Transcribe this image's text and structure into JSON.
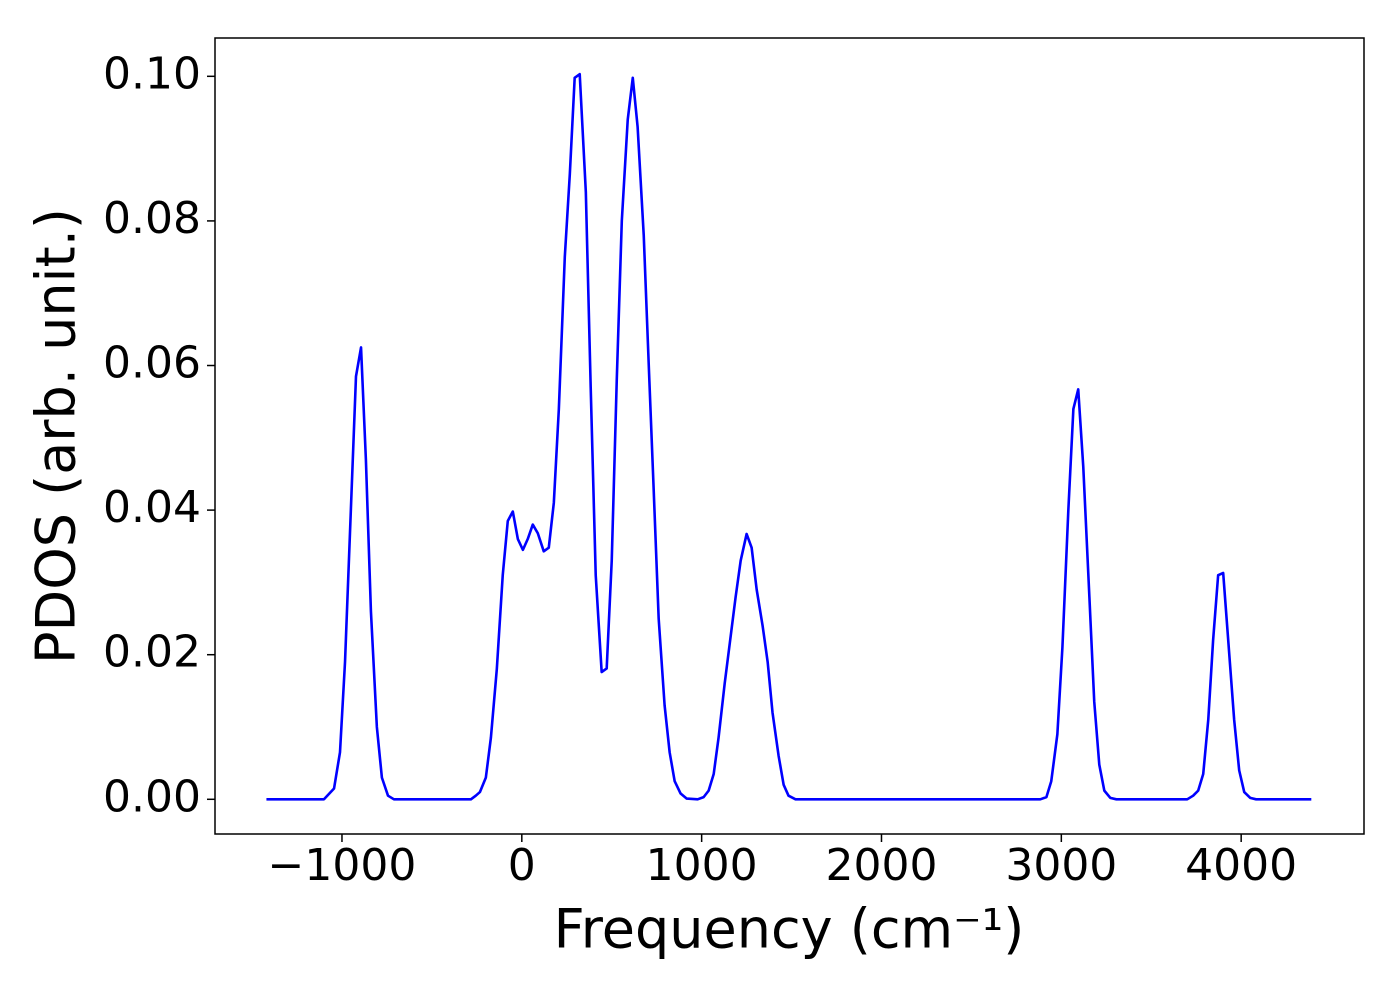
{
  "chart_data": {
    "type": "line",
    "xlabel": "Frequency (cm⁻¹)",
    "ylabel": "PDOS (arb. unit.)",
    "color": "#0000ff",
    "grid": false,
    "xlim": [
      -1706,
      4683
    ],
    "ylim": [
      -0.0048,
      0.1053
    ],
    "xticks": [
      {
        "value": -1000,
        "label": "−1000"
      },
      0,
      1000,
      2000,
      3000,
      4000
    ],
    "yticks": [
      {
        "value": 0,
        "label": "0.00"
      },
      {
        "value": 0.02,
        "label": "0.02"
      },
      {
        "value": 0.04,
        "label": "0.04"
      },
      {
        "value": 0.06,
        "label": "0.06"
      },
      {
        "value": 0.08,
        "label": "0.08"
      },
      {
        "value": 0.1,
        "label": "0.10"
      }
    ],
    "x": [
      -1420,
      -1100,
      -1044,
      -1011,
      -983,
      -922,
      -894,
      -867,
      -839,
      -806,
      -778,
      -744,
      -711,
      -283,
      -256,
      -233,
      -200,
      -172,
      -139,
      -106,
      -78,
      -50,
      -22,
      6,
      33,
      61,
      89,
      122,
      150,
      178,
      206,
      239,
      267,
      294,
      322,
      356,
      383,
      411,
      444,
      472,
      500,
      528,
      556,
      589,
      617,
      644,
      678,
      706,
      733,
      761,
      794,
      822,
      850,
      883,
      917,
      978,
      1011,
      1039,
      1067,
      1094,
      1128,
      1156,
      1189,
      1217,
      1250,
      1278,
      1306,
      1339,
      1367,
      1394,
      1428,
      1456,
      1483,
      1522,
      2883,
      2917,
      2944,
      2978,
      3006,
      3039,
      3067,
      3094,
      3122,
      3156,
      3183,
      3211,
      3239,
      3272,
      3306,
      3700,
      3733,
      3761,
      3789,
      3817,
      3844,
      3872,
      3900,
      3928,
      3961,
      3989,
      4017,
      4050,
      4083,
      4390
    ],
    "values": [
      0,
      0,
      0.0015,
      0.0065,
      0.019,
      0.0585,
      0.0625,
      0.047,
      0.026,
      0.01,
      0.003,
      0.0005,
      0,
      0,
      0.0005,
      0.001,
      0.003,
      0.0085,
      0.018,
      0.031,
      0.0385,
      0.0398,
      0.036,
      0.0345,
      0.036,
      0.038,
      0.0368,
      0.0343,
      0.0348,
      0.041,
      0.054,
      0.075,
      0.0865,
      0.0998,
      0.1003,
      0.084,
      0.057,
      0.031,
      0.0176,
      0.0181,
      0.033,
      0.058,
      0.08,
      0.094,
      0.0998,
      0.093,
      0.078,
      0.06,
      0.043,
      0.025,
      0.013,
      0.0065,
      0.0025,
      0.0008,
      0.0001,
      0,
      0.0003,
      0.0012,
      0.0035,
      0.0085,
      0.016,
      0.0215,
      0.028,
      0.033,
      0.0367,
      0.0348,
      0.029,
      0.024,
      0.019,
      0.012,
      0.006,
      0.002,
      0.0005,
      0,
      0,
      0.0003,
      0.0025,
      0.009,
      0.021,
      0.04,
      0.054,
      0.0567,
      0.046,
      0.028,
      0.0135,
      0.0048,
      0.0012,
      0.0002,
      0,
      0,
      0.0005,
      0.0012,
      0.0035,
      0.011,
      0.022,
      0.031,
      0.0313,
      0.022,
      0.011,
      0.004,
      0.001,
      0.0002,
      0,
      0
    ]
  }
}
